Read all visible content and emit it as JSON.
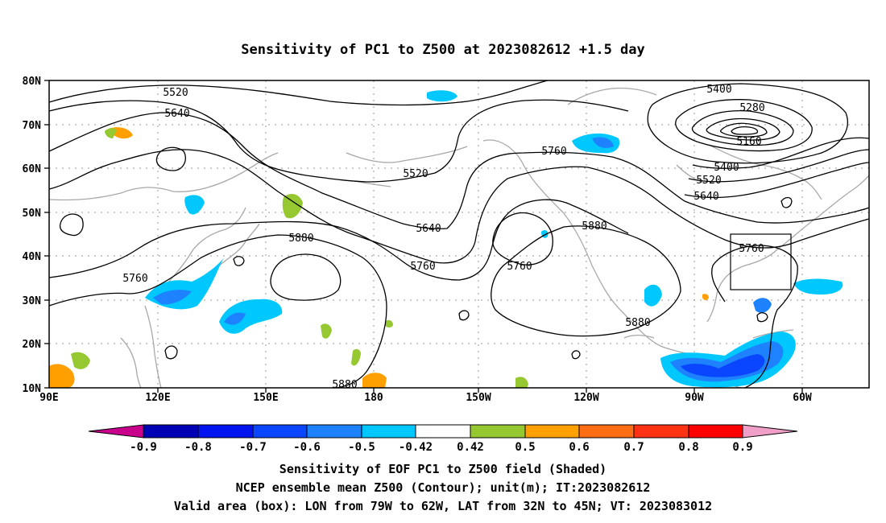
{
  "title": "Sensitivity of PC1 to Z500 at 2023082612 +1.5 day",
  "axes": {
    "lat_labels": [
      "80N",
      "70N",
      "60N",
      "50N",
      "40N",
      "30N",
      "20N",
      "10N"
    ],
    "lon_labels": [
      "90E",
      "120E",
      "150E",
      "180",
      "150W",
      "120W",
      "90W",
      "60W"
    ]
  },
  "contour_labels": {
    "c5520_west": "5520",
    "c5640_west": "5640",
    "c5400_ne": "5400",
    "c5280": "5280",
    "c5160": "5160",
    "c5760_north": "5760",
    "c5520_mid": "5520",
    "c5400_east": "5400",
    "c5520_east": "5520",
    "c5640_east": "5640",
    "c5880_mid": "5880",
    "c5640_mid": "5640",
    "c5760_mid": "5760",
    "c5760_low": "5760",
    "c5880_us": "5880",
    "c5760_box": "5760",
    "c5760_asia": "5760",
    "c5880_gulf": "5880",
    "c5880_south": "5880"
  },
  "colorbar": {
    "labels": [
      "-0.9",
      "-0.8",
      "-0.7",
      "-0.6",
      "-0.5",
      "-0.42",
      "0.42",
      "0.5",
      "0.6",
      "0.7",
      "0.8",
      "0.9"
    ],
    "colors": {
      "lt_min": "#c8008c",
      "b1": "#0000b4",
      "b2": "#0014f0",
      "b3": "#0a46ff",
      "b4": "#1e82ff",
      "b5": "#00c8ff",
      "mid": "#ffffff",
      "g1": "#96c832",
      "o1": "#ffa000",
      "o2": "#ff6e14",
      "r1": "#ff3214",
      "r2": "#ff0000",
      "gt_max": "#f0a0c8"
    }
  },
  "caption": {
    "line1": "Sensitivity of EOF PC1 to Z500 field (Shaded)",
    "line2": "NCEP ensemble mean Z500 (Contour); unit(m); IT:2023082612",
    "line3": "Valid area (box): LON from 79W to 62W, LAT from 32N to 45N; VT: 2023083012"
  }
}
